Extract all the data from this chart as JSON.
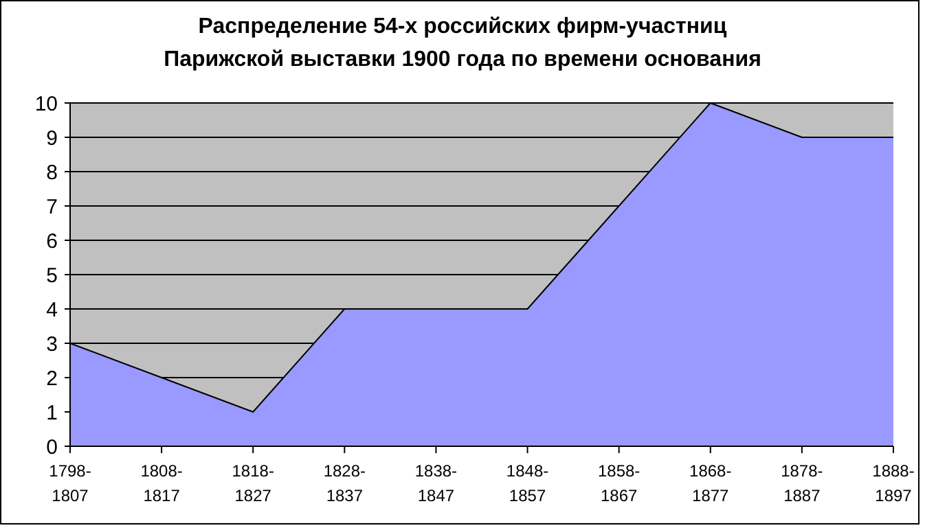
{
  "chart_data": {
    "type": "area",
    "title": "Распределение 54-х российских фирм-участниц Парижской выставки 1900 года по времени основания",
    "categories": [
      "1798-1807",
      "1808-1817",
      "1818-1827",
      "1828-1837",
      "1838-1847",
      "1848-1857",
      "1858-1867",
      "1868-1877",
      "1878-1887",
      "1888-1897"
    ],
    "values": [
      3,
      2,
      1,
      4,
      4,
      4,
      7,
      10,
      9,
      9
    ],
    "color": "#9999ff",
    "ylim": [
      0,
      10
    ],
    "yticks": [
      0,
      1,
      2,
      3,
      4,
      5,
      6,
      7,
      8,
      9,
      10
    ],
    "grid": "y"
  }
}
